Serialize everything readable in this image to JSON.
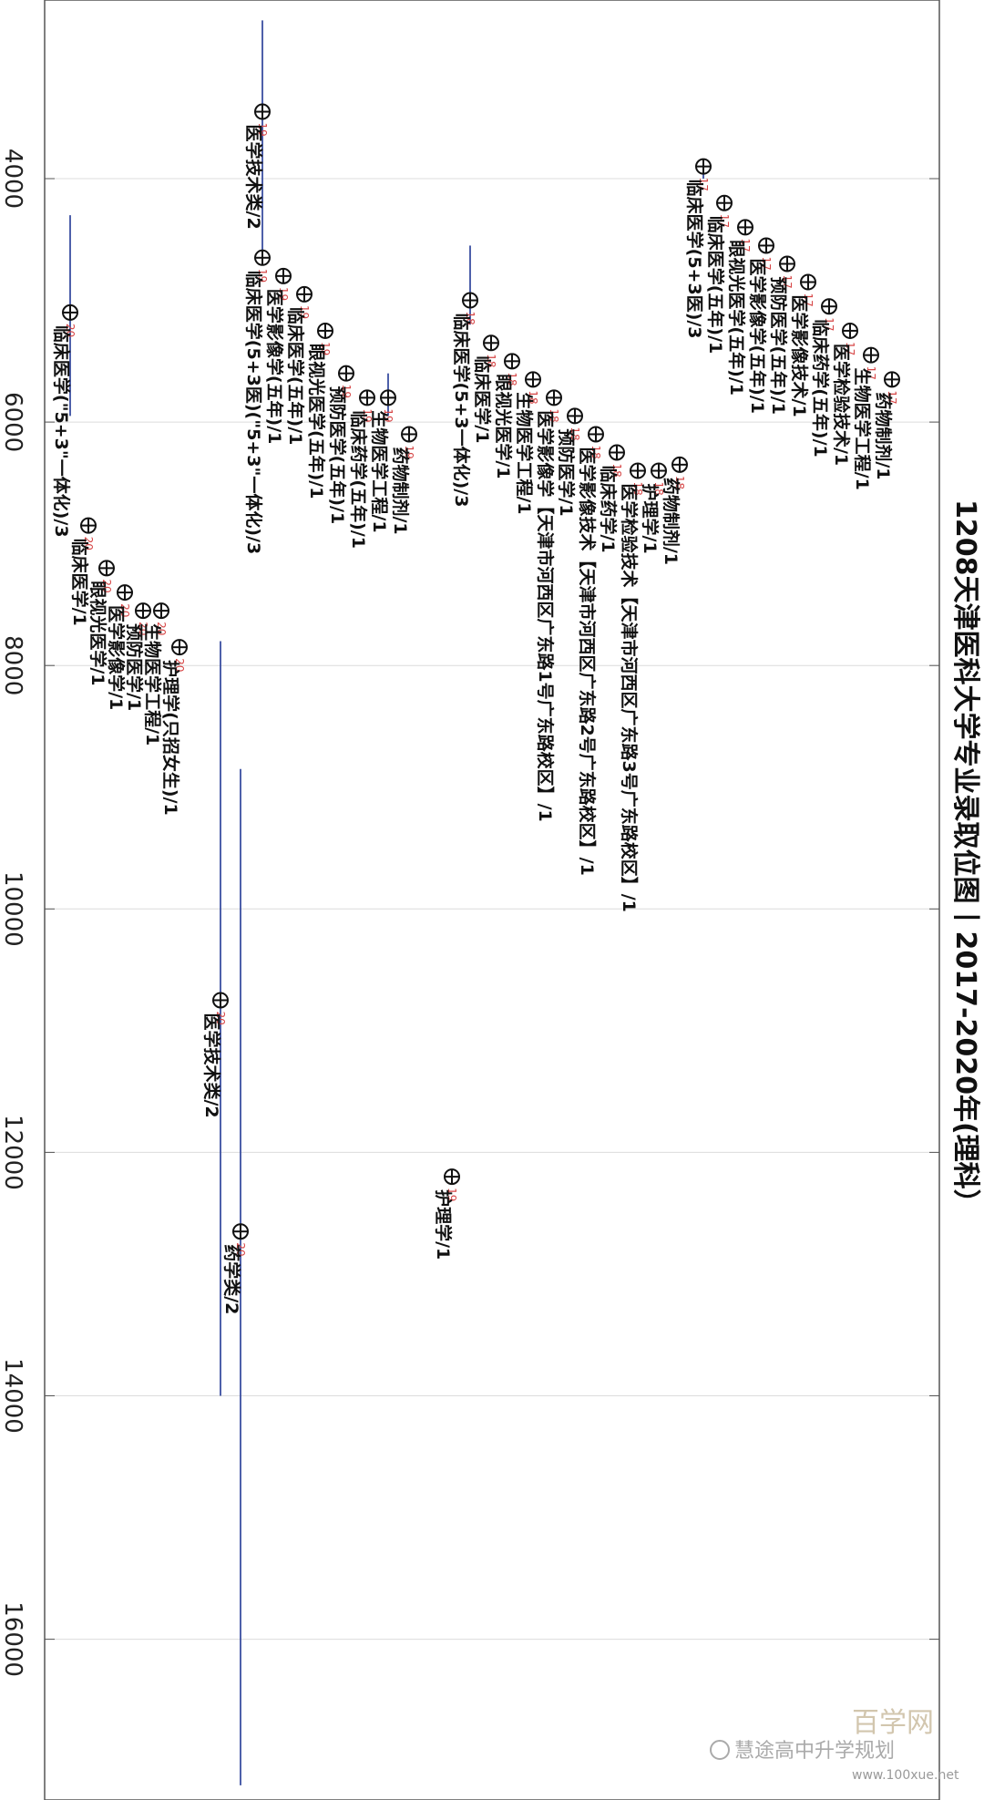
{
  "watermark": {
    "brand": "百学网",
    "handle": "慧途高中升学规划",
    "url": "www.100xue.net"
  },
  "chart_data": {
    "type": "scatter",
    "title": "1208天津医科大学专业录取位图丨2017-2020年(理科）",
    "xlabel": "",
    "ylabel": "",
    "x_axis": {
      "ticks": [
        4000,
        6000,
        8000,
        10000,
        12000,
        14000,
        16000
      ],
      "range": [
        2500,
        17800
      ]
    },
    "grid": true,
    "groups": [
      {
        "year": "17",
        "items": [
          {
            "label": "临床医学(5+3医)/3",
            "x": 3900,
            "range": [
              3850,
              4000
            ]
          },
          {
            "label": "临床医学(五年)/1",
            "x": 4200
          },
          {
            "label": "眼视光医学(五年)/1",
            "x": 4400
          },
          {
            "label": "医学影像学(五年)/1",
            "x": 4550
          },
          {
            "label": "预防医学(五年)/1",
            "x": 4700
          },
          {
            "label": "医学影像技术/1",
            "x": 4850
          },
          {
            "label": "临床药学(五年)/1",
            "x": 5050
          },
          {
            "label": "医学检验技术/1",
            "x": 5250
          },
          {
            "label": "生物医学工程/1",
            "x": 5450
          },
          {
            "label": "药物制剂/1",
            "x": 5650
          }
        ]
      },
      {
        "year": "18",
        "items": [
          {
            "label": "临床医学(5+3一体化)/3",
            "x": 5000,
            "range": [
              4550,
              5200
            ]
          },
          {
            "label": "临床医学/1",
            "x": 5350
          },
          {
            "label": "眼视光医学/1",
            "x": 5500
          },
          {
            "label": "生物医学工程/1",
            "x": 5650
          },
          {
            "label": "医学影像学【天津市河西区广东路1号广东路校区】/1",
            "x": 5800
          },
          {
            "label": "预防医学/1",
            "x": 5950
          },
          {
            "label": "医学影像技术【天津市河西区广东路2号广东路校区】/1",
            "x": 6100
          },
          {
            "label": "临床药学/1",
            "x": 6250
          },
          {
            "label": "医学检验技术【天津市河西区广东路3号广东路校区】/1",
            "x": 6400
          },
          {
            "label": "护理学/1",
            "x": 6400
          },
          {
            "label": "药物制剂/1",
            "x": 6350
          }
        ]
      },
      {
        "year": "19",
        "items": [
          {
            "label": "医学技术类/2",
            "x": 3450,
            "range": [
              2700,
              4700
            ]
          },
          {
            "label": "临床医学(5+3医)(\"5+3\"一体化)/3",
            "x": 4650
          },
          {
            "label": "医学影像学(五年)/1",
            "x": 4800
          },
          {
            "label": "临床医学(五年)/1",
            "x": 4950
          },
          {
            "label": "眼视光医学(五年)/1",
            "x": 5250
          },
          {
            "label": "预防医学(五年)/1",
            "x": 5600
          },
          {
            "label": "临床药学(五年)/1",
            "x": 5800
          },
          {
            "label": "生物医学工程/1",
            "x": 5800,
            "range": [
              5600,
              5950
            ]
          },
          {
            "label": "药物制剂/1",
            "x": 6100
          },
          {
            "label": "护理学/1",
            "x": 12200
          }
        ]
      },
      {
        "year": "20",
        "items": [
          {
            "label": "临床医学(\"5+3\"一体化)/3",
            "x": 5100,
            "range": [
              4300,
              5950
            ]
          },
          {
            "label": "临床医学/1",
            "x": 6850
          },
          {
            "label": "眼视光医学/1",
            "x": 7200
          },
          {
            "label": "医学影像学/1",
            "x": 7400
          },
          {
            "label": "预防医学/1",
            "x": 7550
          },
          {
            "label": "生物医学工程/1",
            "x": 7550
          },
          {
            "label": "护理学(只招女生)/1",
            "x": 7850
          },
          {
            "label": "医学技术类/2",
            "x": 10750,
            "range": [
              7800,
              14000
            ]
          },
          {
            "label": "药学类/2",
            "x": 12650,
            "range": [
              8850,
              17200
            ]
          }
        ]
      }
    ]
  }
}
